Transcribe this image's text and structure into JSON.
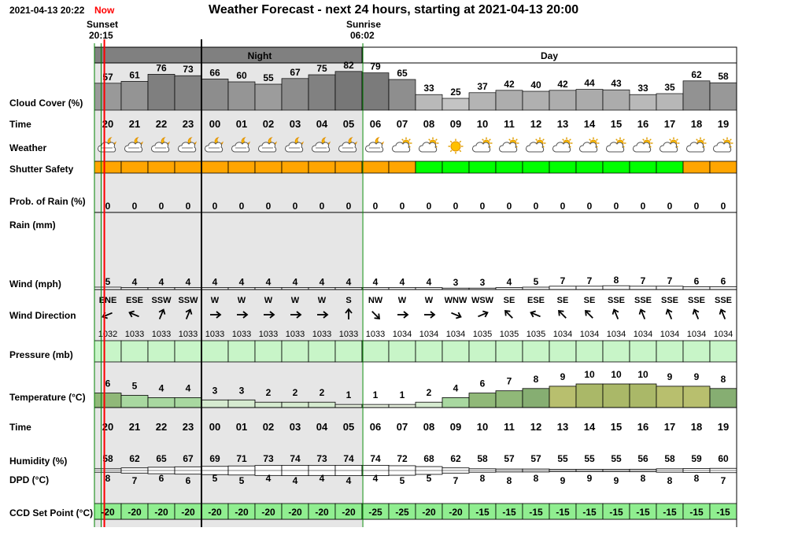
{
  "header": {
    "current_time": "2021-04-13 20:22",
    "now_label": "Now",
    "title": "Weather Forecast - next 24 hours, starting at 2021-04-13 20:00",
    "sunset_label": "Sunset",
    "sunset_time": "20:15",
    "sunrise_label": "Sunrise",
    "sunrise_time": "06:02"
  },
  "bands": {
    "night": "Night",
    "day": "Day"
  },
  "row_labels": {
    "cloud_cover": "Cloud Cover (%)",
    "time": "Time",
    "weather": "Weather",
    "shutter_safety": "Shutter Safety",
    "prob_rain": "Prob. of Rain (%)",
    "rain": "Rain (mm)",
    "wind": "Wind (mph)",
    "wind_direction": "Wind Direction",
    "pressure": "Pressure (mb)",
    "temperature": "Temperature (°C)",
    "time2": "Time",
    "humidity": "Humidity (%)",
    "dpd": "DPD (°C)",
    "ccd": "CCD Set Point (°C)"
  },
  "colors": {
    "night_bg": "#e6e6e6",
    "band_night": "#808080",
    "band_day": "#ffffff",
    "safety_orange": "#ffa500",
    "safety_green": "#00ff00",
    "pressure_fill": "#c8f5c8",
    "ccd_fill": "#90ee90",
    "now_line": "#ff0000",
    "sun_line": "#008000"
  },
  "chart_data": {
    "type": "table",
    "title": "Weather Forecast - next 24 hours, starting at 2021-04-13 20:00",
    "hours": [
      "20",
      "21",
      "22",
      "23",
      "00",
      "01",
      "02",
      "03",
      "04",
      "05",
      "06",
      "07",
      "08",
      "09",
      "10",
      "11",
      "12",
      "13",
      "14",
      "15",
      "16",
      "17",
      "18",
      "19"
    ],
    "is_night": [
      true,
      true,
      true,
      true,
      true,
      true,
      true,
      true,
      true,
      true,
      false,
      false,
      false,
      false,
      false,
      false,
      false,
      false,
      false,
      false,
      false,
      false,
      false,
      false
    ],
    "cloud_cover": [
      57,
      61,
      76,
      73,
      66,
      60,
      55,
      67,
      75,
      82,
      79,
      65,
      33,
      25,
      37,
      42,
      40,
      42,
      44,
      43,
      33,
      35,
      62,
      58
    ],
    "weather_icons": [
      "cloudy-night-icon",
      "cloudy-night-icon",
      "cloudy-night-icon",
      "cloudy-night-icon",
      "cloudy-night-icon",
      "cloudy-night-icon",
      "cloudy-night-icon",
      "cloudy-night-icon",
      "cloudy-night-icon",
      "cloudy-night-icon",
      "cloudy-night-icon",
      "partly-cloudy-icon",
      "partly-cloudy-icon",
      "sunny-icon",
      "partly-cloudy-icon",
      "partly-cloudy-icon",
      "partly-cloudy-icon",
      "partly-cloudy-icon",
      "partly-cloudy-icon",
      "partly-cloudy-icon",
      "partly-cloudy-icon",
      "partly-cloudy-icon",
      "partly-cloudy-icon",
      "partly-cloudy-icon"
    ],
    "shutter_safety": [
      "unsafe",
      "unsafe",
      "unsafe",
      "unsafe",
      "unsafe",
      "unsafe",
      "unsafe",
      "unsafe",
      "unsafe",
      "unsafe",
      "unsafe",
      "unsafe",
      "safe",
      "safe",
      "safe",
      "safe",
      "safe",
      "safe",
      "safe",
      "safe",
      "safe",
      "safe",
      "unsafe",
      "unsafe"
    ],
    "prob_rain": [
      0,
      0,
      0,
      0,
      0,
      0,
      0,
      0,
      0,
      0,
      0,
      0,
      0,
      0,
      0,
      0,
      0,
      0,
      0,
      0,
      0,
      0,
      0,
      0
    ],
    "rain": [
      0,
      0,
      0,
      0,
      0,
      0,
      0,
      0,
      0,
      0,
      0,
      0,
      0,
      0,
      0,
      0,
      0,
      0,
      0,
      0,
      0,
      0,
      0,
      0
    ],
    "wind": [
      5,
      4,
      4,
      4,
      4,
      4,
      4,
      4,
      4,
      4,
      4,
      4,
      4,
      3,
      3,
      4,
      5,
      7,
      7,
      8,
      7,
      7,
      6,
      6
    ],
    "wind_direction": [
      "ENE",
      "ESE",
      "SSW",
      "SSW",
      "W",
      "W",
      "W",
      "W",
      "W",
      "S",
      "NW",
      "W",
      "W",
      "WNW",
      "WSW",
      "SE",
      "ESE",
      "SE",
      "SE",
      "SSE",
      "SSE",
      "SSE",
      "SSE",
      "SSE"
    ],
    "pressure": [
      1032,
      1033,
      1033,
      1033,
      1033,
      1033,
      1033,
      1033,
      1033,
      1033,
      1033,
      1034,
      1034,
      1034,
      1035,
      1035,
      1035,
      1034,
      1034,
      1034,
      1034,
      1034,
      1034,
      1034
    ],
    "temperature": [
      6,
      5,
      4,
      4,
      3,
      3,
      2,
      2,
      2,
      1,
      1,
      1,
      2,
      4,
      6,
      7,
      8,
      9,
      10,
      10,
      10,
      9,
      9,
      8
    ],
    "humidity": [
      58,
      62,
      65,
      67,
      69,
      71,
      73,
      74,
      73,
      74,
      74,
      72,
      68,
      62,
      58,
      57,
      57,
      55,
      55,
      55,
      56,
      58,
      59,
      60
    ],
    "dpd": [
      8,
      7,
      6,
      6,
      5,
      5,
      4,
      4,
      4,
      4,
      4,
      5,
      5,
      7,
      8,
      8,
      8,
      9,
      9,
      9,
      8,
      8,
      8,
      7
    ],
    "ccd_set_point": [
      -20,
      -20,
      -20,
      -20,
      -20,
      -20,
      -20,
      -20,
      -20,
      -20,
      -25,
      -25,
      -20,
      -20,
      -15,
      -15,
      -15,
      -15,
      -15,
      -15,
      -15,
      -15,
      -15,
      -15
    ],
    "now_hour": 20.37,
    "sunset_hour": 20.25,
    "sunrise_hour": 6.03,
    "grid": true
  }
}
